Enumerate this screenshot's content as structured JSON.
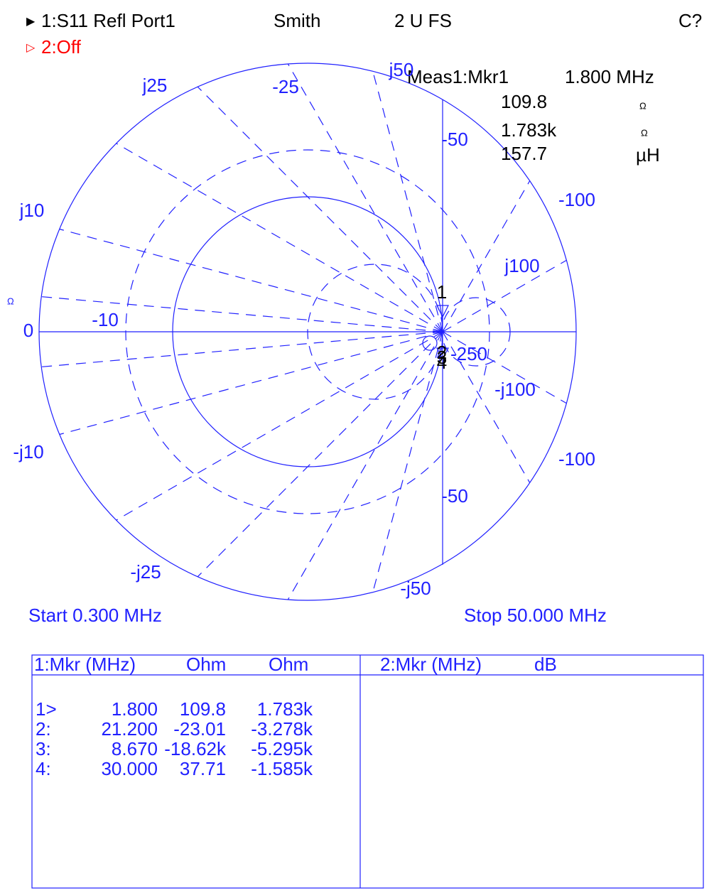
{
  "header": {
    "trace1": "1:S11 Refl Port1",
    "format": "Smith",
    "scale": "2 U FS",
    "status": "C?",
    "trace2": "2:Off"
  },
  "readout": {
    "title": "Meas1:Mkr1",
    "frequency": "1.800 MHz",
    "lines": [
      {
        "value": "109.8",
        "unit": "Ω"
      },
      {
        "value": "1.783k",
        "unit": "Ω"
      },
      {
        "value": "157.7",
        "unit": "µH"
      }
    ]
  },
  "side_unit": "Ω",
  "grid_labels": [
    "j25",
    "-25",
    "j50",
    "-50",
    "j10",
    "-100",
    "j100",
    "-10",
    "0",
    "-250",
    "-j100",
    "-j10",
    "-100",
    "-50",
    "-j25",
    "-j50"
  ],
  "markers": [
    "1",
    "2",
    "3",
    "4"
  ],
  "start": "Start 0.300 MHz",
  "stop": "Stop 50.000 MHz",
  "table1": {
    "header": [
      "1:Mkr (MHz)",
      "Ohm",
      "Ohm"
    ],
    "rows": [
      [
        "1>",
        "1.800",
        "109.8",
        "1.783k"
      ],
      [
        "2:",
        "21.200",
        "-23.01",
        "-3.278k"
      ],
      [
        "3:",
        "8.670",
        "-18.62k",
        "-5.295k"
      ],
      [
        "4:",
        "30.000",
        "37.71",
        "-1.585k"
      ]
    ]
  },
  "table2": {
    "header": [
      "2:Mkr (MHz)",
      "dB"
    ]
  }
}
